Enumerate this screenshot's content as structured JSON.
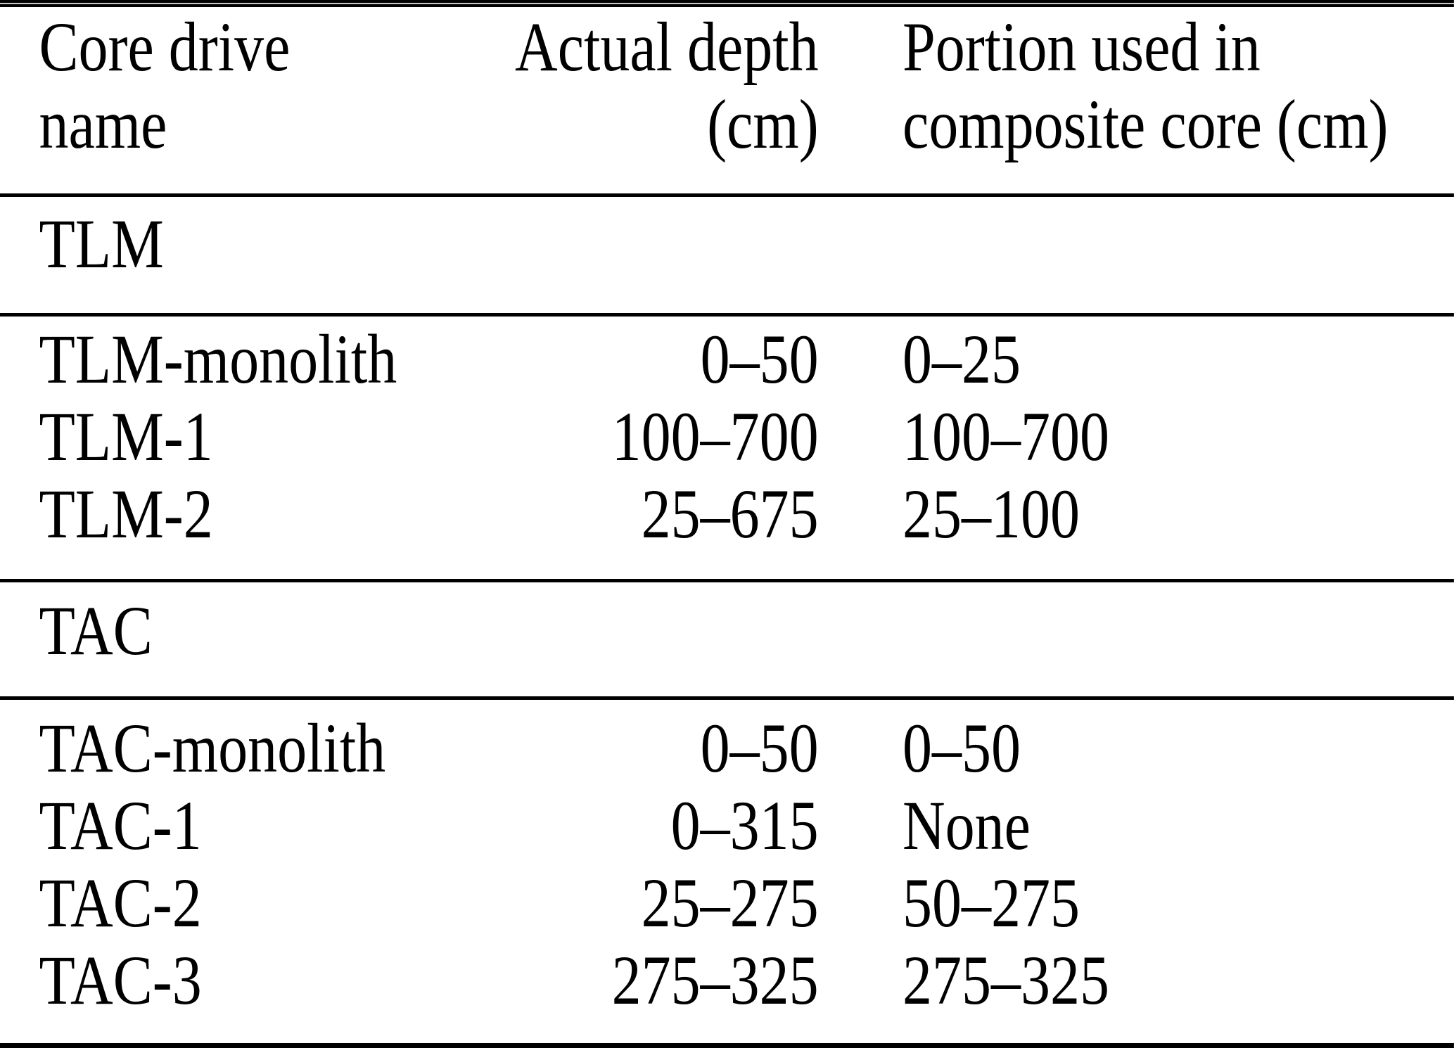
{
  "table": {
    "colors": {
      "text": "#000000",
      "background": "#ffffff",
      "rule": "#000000"
    },
    "columns": [
      {
        "line1": "Core drive",
        "line2": "name"
      },
      {
        "line1": "Actual depth",
        "line2": "(cm)"
      },
      {
        "line1": "Portion used in",
        "line2": "composite core (cm)"
      }
    ],
    "sections": [
      {
        "name": "TLM",
        "rows": [
          {
            "core": "TLM-monolith",
            "actual_depth": "0–50",
            "portion_used": "0–25"
          },
          {
            "core": "TLM-1",
            "actual_depth": "100–700",
            "portion_used": "100–700"
          },
          {
            "core": "TLM-2",
            "actual_depth": "25–675",
            "portion_used": "25–100"
          }
        ]
      },
      {
        "name": "TAC",
        "rows": [
          {
            "core": "TAC-monolith",
            "actual_depth": "0–50",
            "portion_used": "0–50"
          },
          {
            "core": "TAC-1",
            "actual_depth": "0–315",
            "portion_used": "None"
          },
          {
            "core": "TAC-2",
            "actual_depth": "25–275",
            "portion_used": "50–275"
          },
          {
            "core": "TAC-3",
            "actual_depth": "275–325",
            "portion_used": "275–325"
          }
        ]
      }
    ]
  }
}
